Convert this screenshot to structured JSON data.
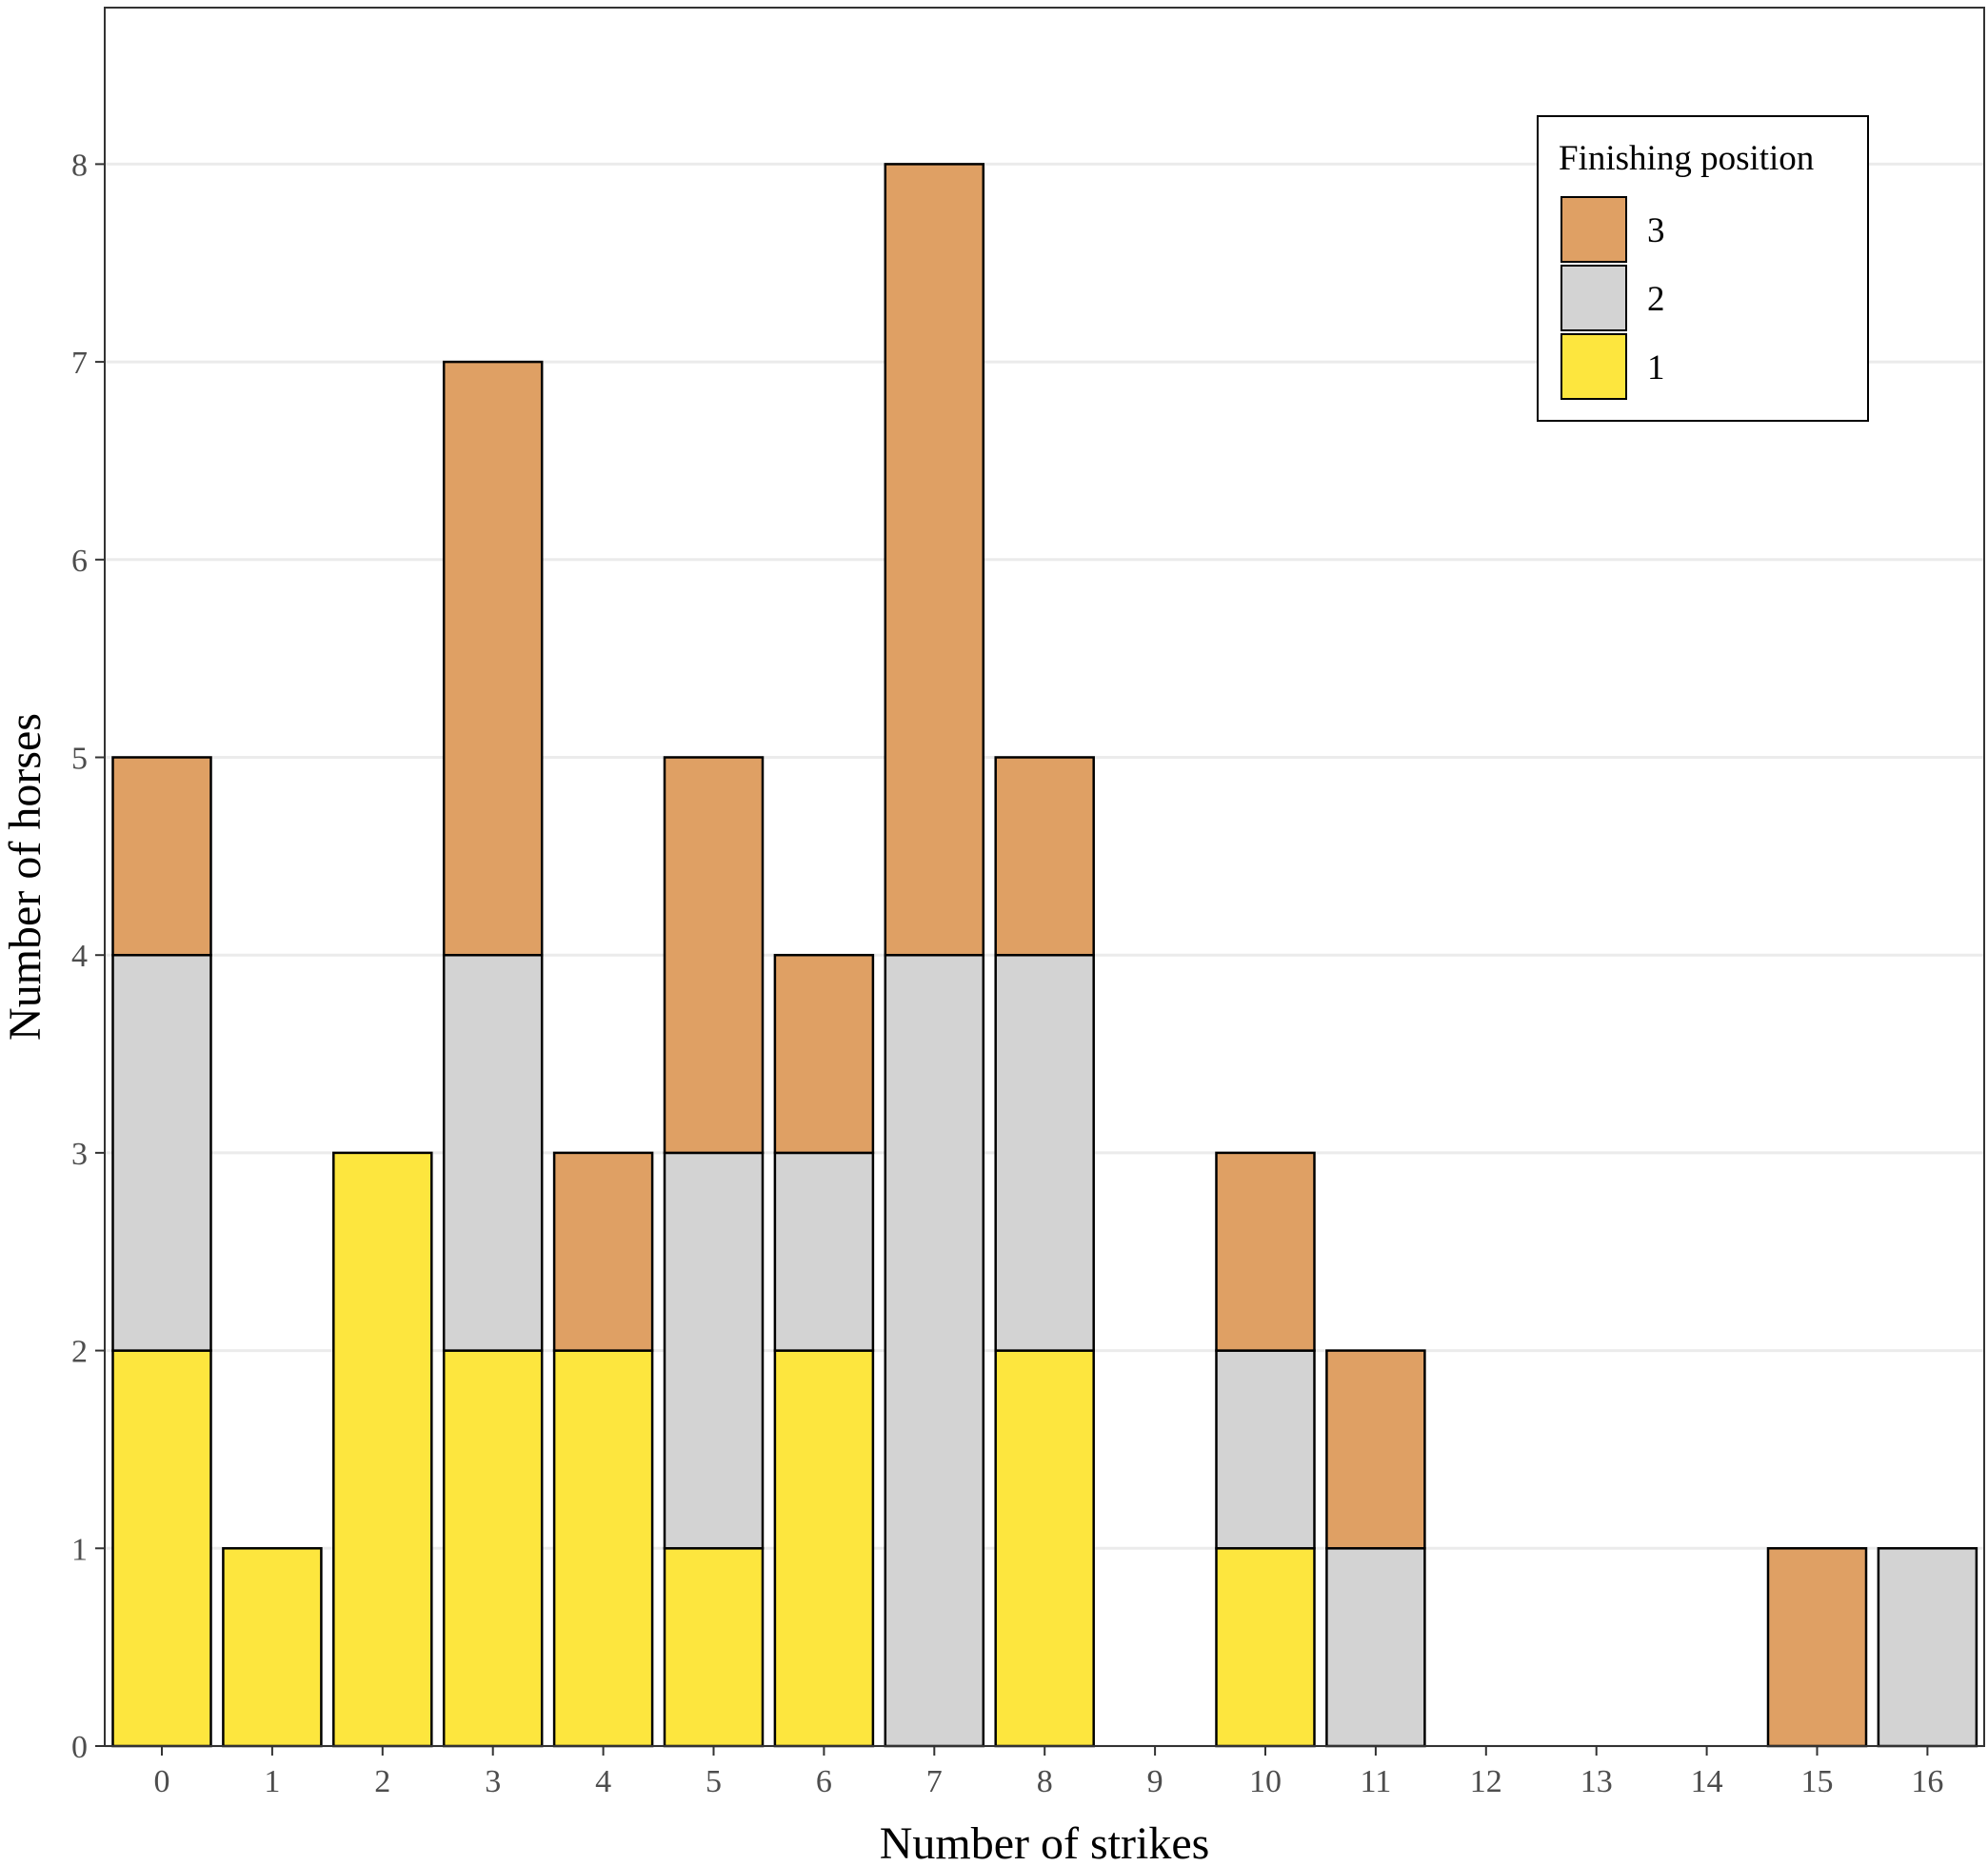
{
  "chart_data": {
    "type": "bar",
    "stacked": true,
    "title": "",
    "xlabel": "Number of strikes",
    "ylabel": "Number of horses",
    "categories": [
      "0",
      "1",
      "2",
      "3",
      "4",
      "5",
      "6",
      "7",
      "8",
      "9",
      "10",
      "11",
      "12",
      "13",
      "14",
      "15",
      "16"
    ],
    "yticks": [
      "0",
      "1",
      "2",
      "3",
      "4",
      "5",
      "6",
      "7",
      "8"
    ],
    "ylim": [
      0,
      8.8
    ],
    "grid": true,
    "legend": {
      "title": "Finishing position",
      "position": "top-right",
      "order": [
        "3",
        "2",
        "1"
      ]
    },
    "series": [
      {
        "name": "1",
        "color": "#fde63e",
        "values": [
          2,
          1,
          3,
          2,
          2,
          1,
          2,
          0,
          2,
          0,
          1,
          0,
          0,
          0,
          0,
          0,
          0
        ]
      },
      {
        "name": "2",
        "color": "#d3d3d3",
        "values": [
          2,
          0,
          0,
          2,
          0,
          2,
          1,
          4,
          2,
          0,
          1,
          1,
          0,
          0,
          0,
          0,
          1
        ]
      },
      {
        "name": "3",
        "color": "#dfa064",
        "values": [
          1,
          0,
          0,
          3,
          1,
          2,
          1,
          4,
          1,
          0,
          1,
          1,
          0,
          0,
          0,
          1,
          0
        ]
      }
    ]
  }
}
